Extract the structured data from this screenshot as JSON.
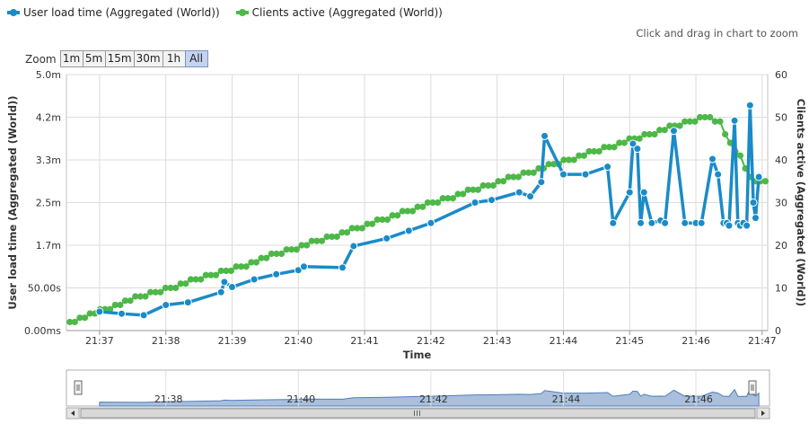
{
  "legend": {
    "series1": "User load time (Aggregated (World))",
    "series2": "Clients active (Aggregated (World))"
  },
  "zoom_hint": "Click and drag in chart to zoom",
  "zoom": {
    "label": "Zoom",
    "buttons": [
      "1m",
      "5m",
      "15m",
      "30m",
      "1h",
      "All"
    ],
    "active": "All"
  },
  "colors": {
    "load": "#1a8bc7",
    "clients": "#4db847",
    "navigator": "#a9bfdb"
  },
  "chart_data": {
    "type": "line",
    "xlabel": "Time",
    "ylabel_left": "User load time (Aggregated (World))",
    "ylabel_right": "Clients active (Aggregated (World))",
    "x_ticks": [
      "21:37",
      "21:38",
      "21:39",
      "21:40",
      "21:41",
      "21:42",
      "21:43",
      "21:44",
      "21:45",
      "21:46",
      "21:47"
    ],
    "y_left_ticks": [
      "0.00ms",
      "50.00s",
      "1.7m",
      "2.5m",
      "3.3m",
      "4.2m",
      "5.0m"
    ],
    "y_right_ticks": [
      "0",
      "10",
      "20",
      "30",
      "40",
      "50",
      "60"
    ],
    "xlim": [
      "21:36:30",
      "21:47:05"
    ],
    "ylim_right": [
      0,
      60
    ],
    "ylim_left_minutes": [
      0,
      5
    ],
    "navigator_ticks": [
      "21:38",
      "21:40",
      "21:42",
      "21:44",
      "21:46"
    ],
    "grid": true,
    "series": [
      {
        "name": "User load time (Aggregated (World))",
        "unit": "minutes",
        "x": [
          "21:37:00",
          "21:37:20",
          "21:37:40",
          "21:38:00",
          "21:38:20",
          "21:38:50",
          "21:38:53",
          "21:39:00",
          "21:39:20",
          "21:39:40",
          "21:40:00",
          "21:40:05",
          "21:40:40",
          "21:40:50",
          "21:41:20",
          "21:41:40",
          "21:42:00",
          "21:42:40",
          "21:42:55",
          "21:43:20",
          "21:43:30",
          "21:43:40",
          "21:43:43",
          "21:44:00",
          "21:44:20",
          "21:44:40",
          "21:44:45",
          "21:45:00",
          "21:45:03",
          "21:45:07",
          "21:45:10",
          "21:45:13",
          "21:45:20",
          "21:45:28",
          "21:45:32",
          "21:45:40",
          "21:45:50",
          "21:46:00",
          "21:46:05",
          "21:46:15",
          "21:46:20",
          "21:46:25",
          "21:46:28",
          "21:46:30",
          "21:46:35",
          "21:46:38",
          "21:46:40",
          "21:46:43",
          "21:46:46",
          "21:46:49",
          "21:46:52",
          "21:46:54",
          "21:46:57"
        ],
        "values": [
          0.37,
          0.33,
          0.3,
          0.5,
          0.55,
          0.75,
          0.95,
          0.85,
          1.0,
          1.1,
          1.18,
          1.25,
          1.23,
          1.65,
          1.8,
          1.95,
          2.1,
          2.5,
          2.55,
          2.7,
          2.62,
          2.9,
          3.8,
          3.05,
          3.05,
          3.2,
          2.1,
          2.7,
          3.65,
          3.55,
          2.1,
          2.7,
          2.1,
          2.15,
          2.1,
          3.9,
          2.1,
          2.1,
          2.1,
          3.35,
          3.05,
          2.1,
          2.1,
          2.05,
          4.1,
          2.1,
          2.05,
          2.1,
          2.05,
          4.4,
          2.5,
          2.2,
          3.0
        ]
      },
      {
        "name": "Clients active (Aggregated (World))",
        "unit": "clients",
        "x_range": [
          "21:36:33",
          "21:47:03"
        ],
        "values": [
          2,
          2,
          3,
          3,
          4,
          4,
          5,
          5,
          5,
          6,
          6,
          7,
          7,
          8,
          8,
          8,
          9,
          9,
          9,
          10,
          10,
          10,
          11,
          11,
          12,
          12,
          12,
          13,
          13,
          13,
          14,
          14,
          14,
          15,
          15,
          15,
          16,
          16,
          17,
          17,
          18,
          18,
          18,
          19,
          19,
          19,
          20,
          20,
          21,
          21,
          21,
          22,
          22,
          22,
          23,
          23,
          24,
          24,
          24,
          25,
          25,
          26,
          26,
          26,
          27,
          27,
          28,
          28,
          28,
          29,
          29,
          30,
          30,
          30,
          31,
          31,
          31,
          32,
          32,
          33,
          33,
          33,
          34,
          34,
          34,
          35,
          35,
          36,
          36,
          36,
          37,
          37,
          37,
          38,
          38,
          39,
          39,
          39,
          40,
          40,
          40,
          41,
          41,
          42,
          42,
          42,
          43,
          43,
          43,
          44,
          44,
          45,
          45,
          45,
          46,
          46,
          46,
          47,
          47,
          48,
          48,
          48,
          49,
          49,
          49,
          50,
          50,
          50,
          49,
          49,
          46,
          44,
          42,
          41,
          38,
          36,
          35,
          35,
          35
        ]
      }
    ]
  }
}
